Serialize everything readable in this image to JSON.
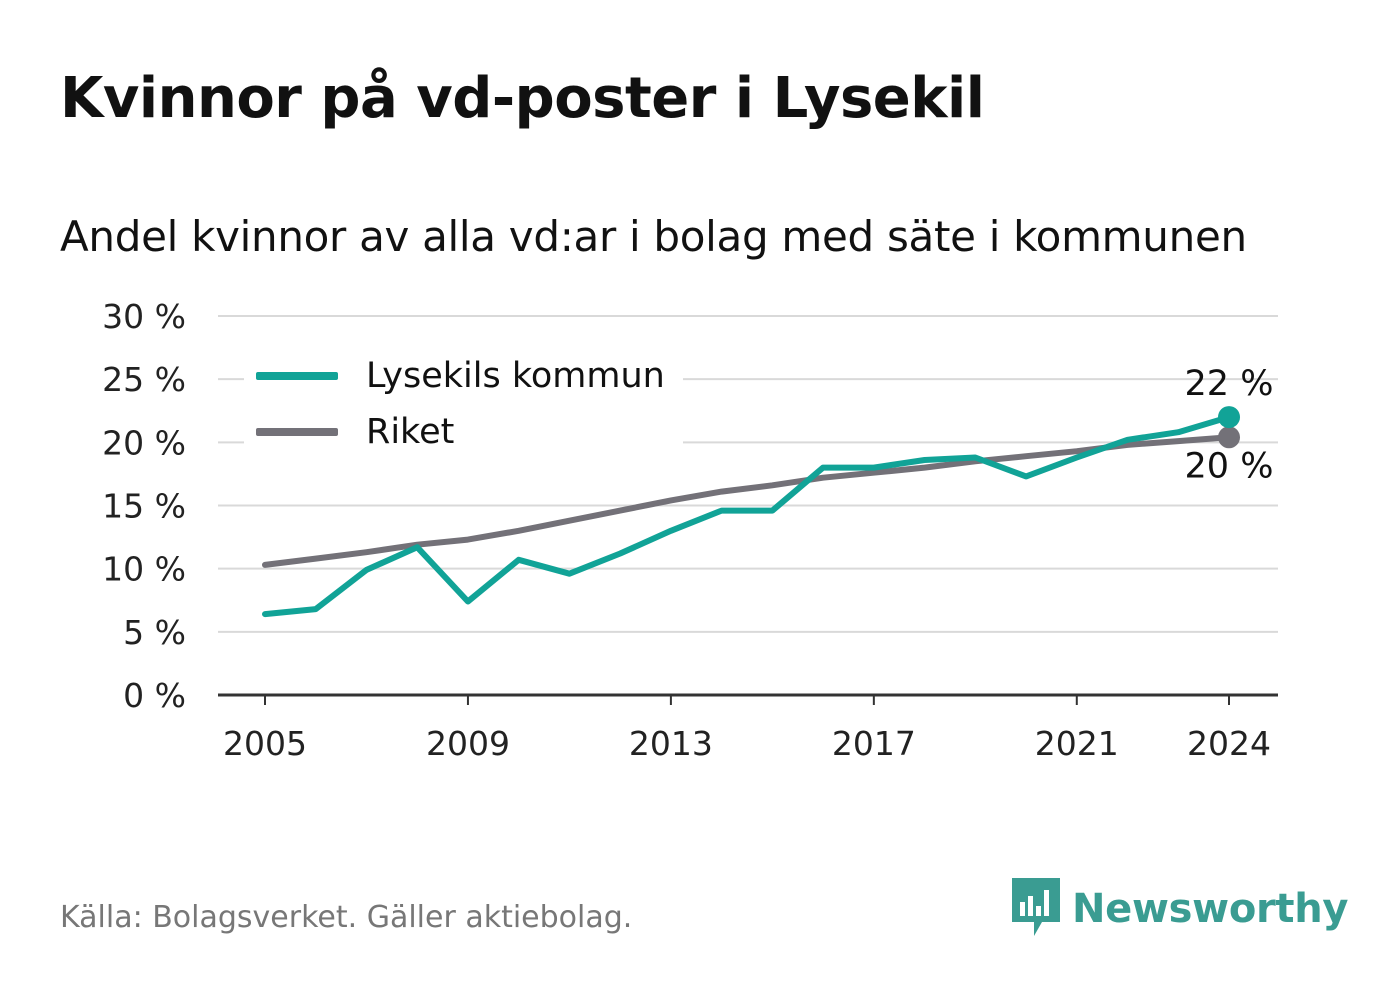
{
  "title": "Kvinnor på vd-poster i Lysekil",
  "subtitle": "Andel kvinnor av alla vd:ar i bolag med säte i kommunen",
  "footer": {
    "source": "Källa: Bolagsverket. Gäller aktiebolag."
  },
  "brand": {
    "name": "Newsworthy",
    "icon": "newsworthy-logo-icon",
    "color": "#3a9c92"
  },
  "colors": {
    "lysekil": "#11a397",
    "riket": "#737178",
    "grid": "#d9d9d9",
    "axis": "#333333"
  },
  "chart_data": {
    "type": "line",
    "title": "Kvinnor på vd-poster i Lysekil",
    "subtitle": "Andel kvinnor av alla vd:ar i bolag med säte i kommunen",
    "xlabel": "",
    "ylabel": "",
    "ylim": [
      0,
      30
    ],
    "yticks": [
      0,
      5,
      10,
      15,
      20,
      25,
      30
    ],
    "ytick_labels": [
      "0 %",
      "5 %",
      "10 %",
      "15 %",
      "20 %",
      "25 %",
      "30 %"
    ],
    "xticks": [
      2005,
      2009,
      2013,
      2017,
      2021,
      2024
    ],
    "xtick_labels": [
      "2005",
      "2009",
      "2013",
      "2017",
      "2021",
      "2024"
    ],
    "grid": true,
    "legend_position": "top-left",
    "x": [
      2005,
      2006,
      2007,
      2008,
      2009,
      2010,
      2011,
      2012,
      2013,
      2014,
      2015,
      2016,
      2017,
      2018,
      2019,
      2020,
      2021,
      2022,
      2023,
      2024
    ],
    "series": [
      {
        "name": "Lysekils kommun",
        "color": "#11a397",
        "values": [
          6.4,
          6.8,
          9.9,
          11.7,
          7.4,
          10.7,
          9.6,
          11.2,
          13.0,
          14.6,
          14.6,
          18.0,
          18.0,
          18.6,
          18.8,
          17.3,
          18.8,
          20.2,
          20.8,
          22.0
        ],
        "end_label": "22 %"
      },
      {
        "name": "Riket",
        "color": "#737178",
        "values": [
          10.3,
          10.8,
          11.3,
          11.9,
          12.3,
          13.0,
          13.8,
          14.6,
          15.4,
          16.1,
          16.6,
          17.2,
          17.6,
          18.0,
          18.5,
          18.9,
          19.3,
          19.8,
          20.1,
          20.4
        ],
        "end_label": "20 %"
      }
    ]
  }
}
